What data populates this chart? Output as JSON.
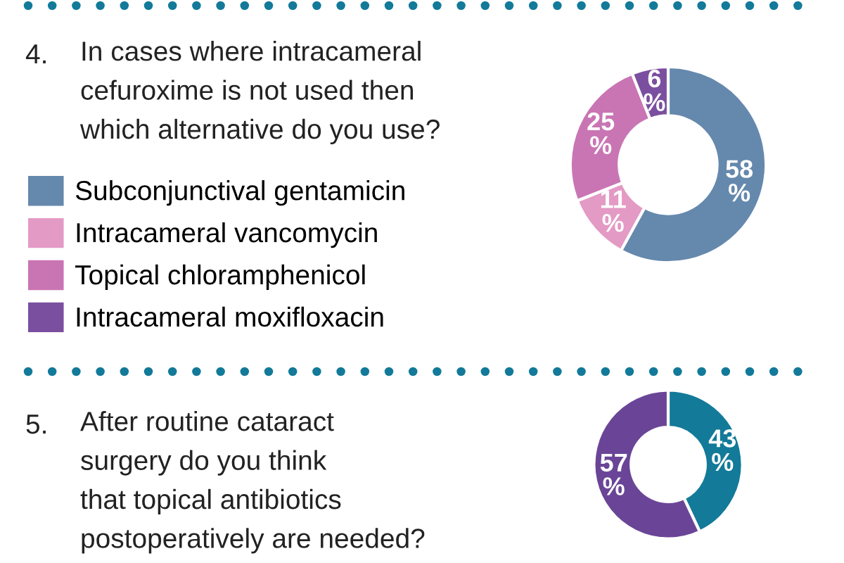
{
  "chart_data": [
    {
      "type": "donut",
      "title": "In cases where intracameral\ncefuroxime is not used then\nwhich alternative do you use?",
      "annotations": [
        "4."
      ],
      "categories": [
        "Subconjunctival gentamicin",
        "Intracameral vancomycin",
        "Topical chloramphenicol",
        "Intracameral moxifloxacin"
      ],
      "values": [
        58,
        11,
        25,
        6
      ],
      "colors": [
        "#6588ad",
        "#e39ac4",
        "#c975b4",
        "#7b4fa0"
      ],
      "value_labels": [
        "58\n%",
        "11\n%",
        "25\n%",
        "6\n%"
      ],
      "legend": "left"
    },
    {
      "type": "donut",
      "title": "After routine cataract\nsurgery do you think\nthat topical antibiotics\npostoperatively are needed?",
      "annotations": [
        "5."
      ],
      "categories": [
        null,
        null
      ],
      "values": [
        43,
        57
      ],
      "colors": [
        "#137a99",
        "#6a4597"
      ],
      "value_labels": [
        "43\n%",
        "57\n%"
      ]
    }
  ]
}
